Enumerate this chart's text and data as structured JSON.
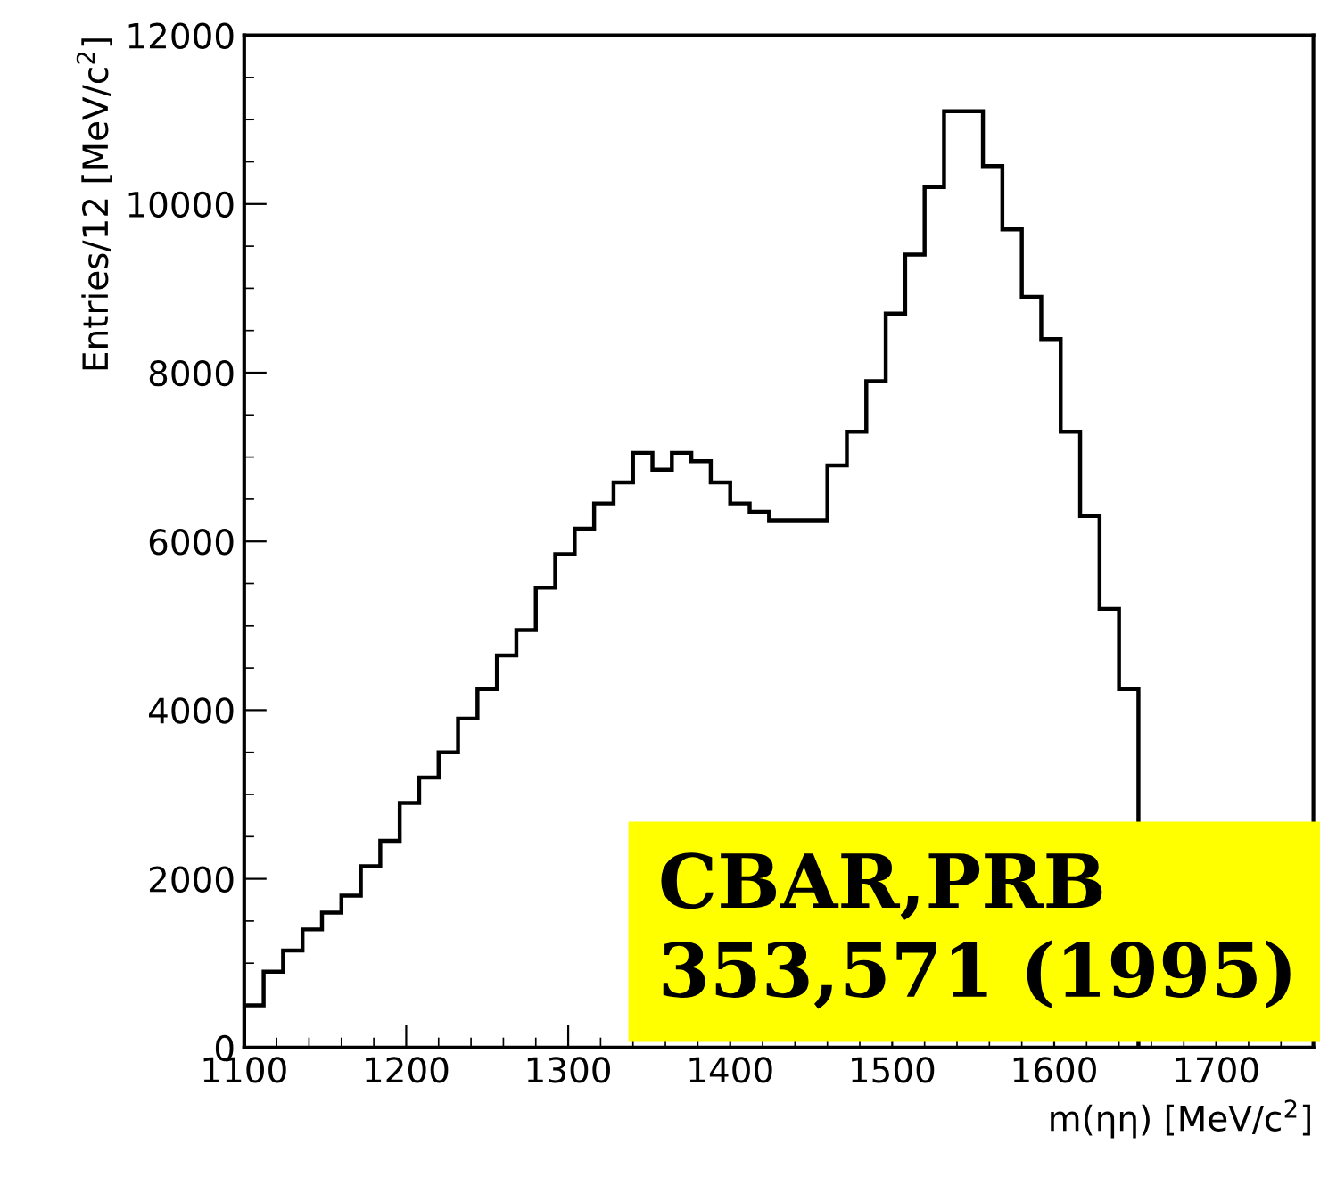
{
  "chart_data": {
    "type": "histogram",
    "xlabel": "m(ηη) [MeV/c$^{2}$]",
    "ylabel": "Entries/12 [MeV/c$^{2}$]",
    "xlim": [
      1100,
      1760
    ],
    "ylim": [
      0,
      12000
    ],
    "xticks": [
      1100,
      1200,
      1300,
      1400,
      1500,
      1600,
      1700
    ],
    "yticks": [
      0,
      2000,
      4000,
      6000,
      8000,
      10000,
      12000
    ],
    "color": "#000000",
    "bins": [
      1100,
      1112,
      1124,
      1136,
      1148,
      1160,
      1172,
      1184,
      1196,
      1208,
      1220,
      1232,
      1244,
      1256,
      1268,
      1280,
      1292,
      1304,
      1316,
      1328,
      1340,
      1352,
      1364,
      1376,
      1388,
      1400,
      1412,
      1424,
      1436,
      1448,
      1460,
      1472,
      1484,
      1496,
      1508,
      1520,
      1532,
      1544,
      1556,
      1568,
      1580,
      1592,
      1604,
      1616,
      1628,
      1640,
      1652
    ],
    "values": [
      500,
      900,
      1150,
      1400,
      1600,
      1800,
      2150,
      2450,
      2900,
      3200,
      3500,
      3900,
      4250,
      4650,
      4950,
      5450,
      5850,
      6150,
      6450,
      6700,
      7050,
      6850,
      7050,
      6950,
      6700,
      6450,
      6350,
      6250,
      6250,
      6250,
      6900,
      7300,
      7900,
      8700,
      9400,
      10200,
      11100,
      11100,
      10450,
      9700,
      8900,
      8400,
      7300,
      6300,
      5200,
      4250
    ],
    "annotations": [
      "CBAR,PRB\n353,571 (1995)"
    ]
  }
}
